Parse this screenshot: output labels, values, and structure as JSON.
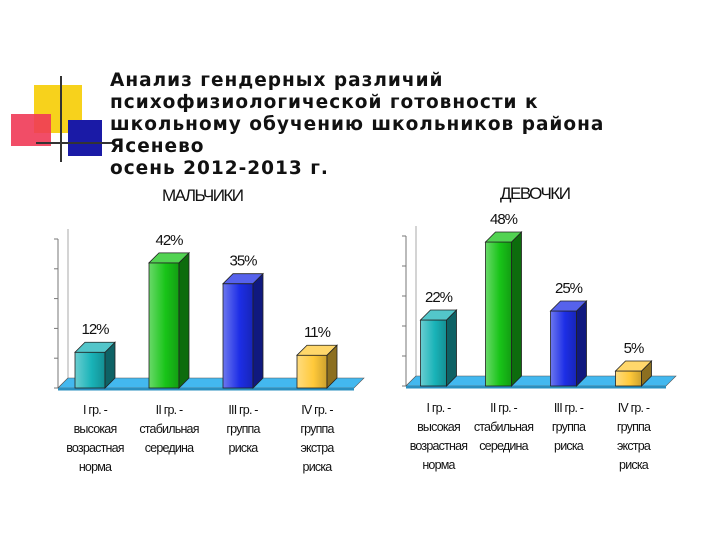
{
  "title_lines": [
    "Анализ гендерных различий",
    "психофизиологической готовности к",
    "школьному обучению школьников района",
    "Ясенево",
    "осень 2012-2013 г."
  ],
  "chart_data": [
    {
      "type": "bar",
      "title": "МАЛЬЧИКИ",
      "categories": [
        "I гр. - высокая возрастная норма",
        "II гр. - стабильная середина",
        "III гр. - группа риска",
        "IV гр. - группа экстра риска"
      ],
      "category_lines": [
        [
          "I гр. -",
          "высокая",
          "возрастная",
          "норма"
        ],
        [
          "II гр. -",
          "стабильная",
          "середина"
        ],
        [
          "III гр. -",
          "группа",
          "риска"
        ],
        [
          "IV гр. -",
          "группа",
          "экстра",
          "риска"
        ]
      ],
      "values": [
        12,
        42,
        35,
        11
      ],
      "value_labels": [
        "12%",
        "42%",
        "35%",
        "11%"
      ],
      "bar_colors": [
        "#19b3b8",
        "#18c418",
        "#1d2ee6",
        "#ffc93a"
      ],
      "ylim": [
        0,
        50
      ],
      "grid": false
    },
    {
      "type": "bar",
      "title": "ДЕВОЧКИ",
      "categories": [
        "I гр. - высокая возрастная норма",
        "II гр. - стабильная середина",
        "III гр. - группа риска",
        "IV гр. - группа экстра риска"
      ],
      "category_lines": [
        [
          "I гр. -",
          "высокая",
          "возрастная",
          "норма"
        ],
        [
          "II гр. -",
          "стабильная",
          "середина"
        ],
        [
          "III гр. -",
          "группа",
          "риска"
        ],
        [
          "IV гр. -",
          "группа",
          "экстра",
          "риска"
        ]
      ],
      "values": [
        22,
        48,
        25,
        5
      ],
      "value_labels": [
        "22%",
        "48%",
        "25%",
        "5%"
      ],
      "bar_colors": [
        "#19b3b8",
        "#18c418",
        "#1d2ee6",
        "#ffc93a"
      ],
      "ylim": [
        0,
        50
      ],
      "grid": false
    }
  ]
}
